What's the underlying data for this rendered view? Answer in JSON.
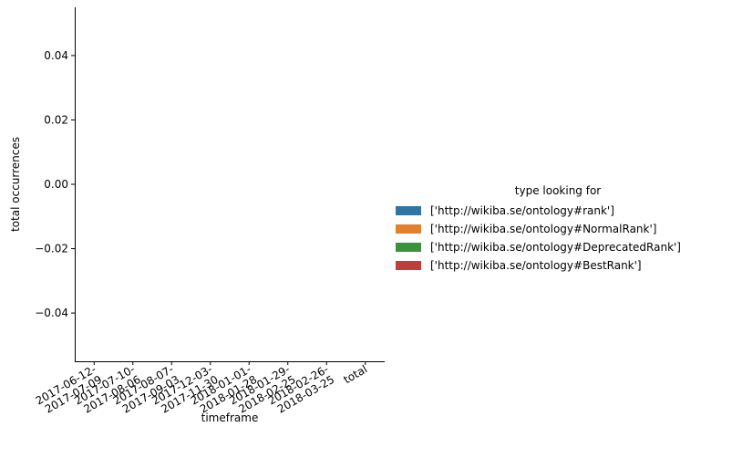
{
  "chart_data": {
    "type": "bar",
    "xlabel": "timeframe",
    "ylabel": "total occurrences",
    "ylim": [
      -0.055,
      0.055
    ],
    "yticks": [
      -0.04,
      -0.02,
      0.0,
      0.02,
      0.04
    ],
    "ytick_labels": [
      "−0.04",
      "−0.02",
      "0.00",
      "0.02",
      "0.04"
    ],
    "categories": [
      [
        "2017-06-12-",
        "2017-07-09"
      ],
      [
        "2017-07-10-",
        "2017-08-06"
      ],
      [
        "2017-08-07-",
        "2017-09-03"
      ],
      [
        "2017-12-03-",
        "2017-11-30"
      ],
      [
        "2018-01-01-",
        "2018-01-28"
      ],
      [
        "2018-01-29-",
        "2018-02-25"
      ],
      [
        "2018-02-26-",
        "2018-03-25"
      ],
      [
        "total"
      ]
    ],
    "legend": {
      "title": "type looking for",
      "placement": "right",
      "entries": [
        {
          "label": "['http://wikiba.se/ontology#rank']",
          "color": "#3274a1"
        },
        {
          "label": "['http://wikiba.se/ontology#NormalRank']",
          "color": "#e1812c"
        },
        {
          "label": "['http://wikiba.se/ontology#DeprecatedRank']",
          "color": "#3a923a"
        },
        {
          "label": "['http://wikiba.se/ontology#BestRank']",
          "color": "#c03d3e"
        }
      ]
    },
    "series": [],
    "grid": false
  }
}
